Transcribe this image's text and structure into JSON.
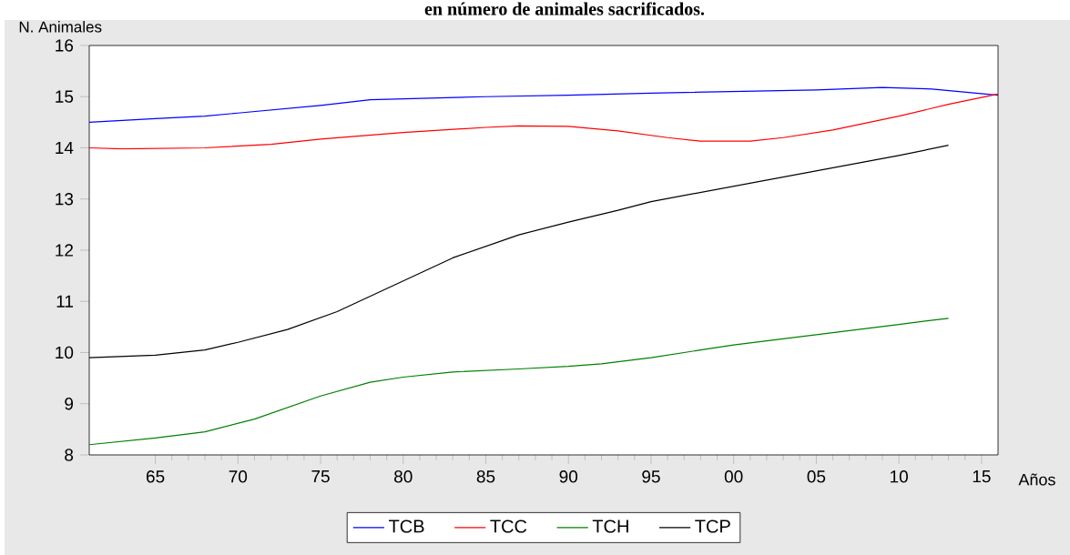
{
  "chart_data": {
    "type": "line",
    "title": "en número de animales sacrificados.",
    "ylabel": "N. Animales",
    "xlabel": "Años",
    "xlim": [
      1961,
      2016
    ],
    "ylim": [
      8,
      16
    ],
    "xticks": [
      {
        "value": 1965,
        "label": "65"
      },
      {
        "value": 1970,
        "label": "70"
      },
      {
        "value": 1975,
        "label": "75"
      },
      {
        "value": 1980,
        "label": "80"
      },
      {
        "value": 1985,
        "label": "85"
      },
      {
        "value": 1990,
        "label": "90"
      },
      {
        "value": 1995,
        "label": "95"
      },
      {
        "value": 2000,
        "label": "00"
      },
      {
        "value": 2005,
        "label": "05"
      },
      {
        "value": 2010,
        "label": "10"
      },
      {
        "value": 2015,
        "label": "15"
      }
    ],
    "yticks": [
      8,
      9,
      10,
      11,
      12,
      13,
      14,
      15,
      16
    ],
    "grid": false,
    "legend": "bottom",
    "marker": "none",
    "line_style": "solid",
    "series": [
      {
        "name": "TCB",
        "color": "#0000ff",
        "x": [
          1961,
          1965,
          1968,
          1970,
          1975,
          1978,
          1985,
          1990,
          1995,
          2000,
          2005,
          2009,
          2012,
          2016
        ],
        "values": [
          14.5,
          14.57,
          14.62,
          14.68,
          14.83,
          14.94,
          15.0,
          15.03,
          15.07,
          15.1,
          15.13,
          15.18,
          15.15,
          15.03
        ]
      },
      {
        "name": "TCC",
        "color": "#ff0000",
        "x": [
          1961,
          1963,
          1968,
          1972,
          1975,
          1980,
          1985,
          1987,
          1990,
          1993,
          1996,
          1998,
          2001,
          2003,
          2006,
          2010,
          2013,
          2016
        ],
        "values": [
          14.0,
          13.98,
          14.0,
          14.07,
          14.17,
          14.3,
          14.4,
          14.43,
          14.42,
          14.33,
          14.2,
          14.13,
          14.13,
          14.2,
          14.35,
          14.62,
          14.85,
          15.05
        ]
      },
      {
        "name": "TCH",
        "color": "#008000",
        "x": [
          1961,
          1965,
          1968,
          1971,
          1975,
          1978,
          1980,
          1983,
          1987,
          1990,
          1992,
          1995,
          1998,
          2000,
          2005,
          2010,
          2013
        ],
        "values": [
          8.2,
          8.33,
          8.45,
          8.7,
          9.15,
          9.42,
          9.52,
          9.62,
          9.68,
          9.73,
          9.78,
          9.9,
          10.05,
          10.15,
          10.35,
          10.55,
          10.67
        ]
      },
      {
        "name": "TCP",
        "color": "#000000",
        "x": [
          1961,
          1965,
          1968,
          1970,
          1973,
          1976,
          1980,
          1983,
          1987,
          1990,
          1993,
          1995,
          2000,
          2005,
          2010,
          2013
        ],
        "values": [
          9.9,
          9.95,
          10.05,
          10.2,
          10.45,
          10.8,
          11.4,
          11.85,
          12.3,
          12.55,
          12.78,
          12.95,
          13.25,
          13.55,
          13.85,
          14.05
        ]
      }
    ]
  }
}
